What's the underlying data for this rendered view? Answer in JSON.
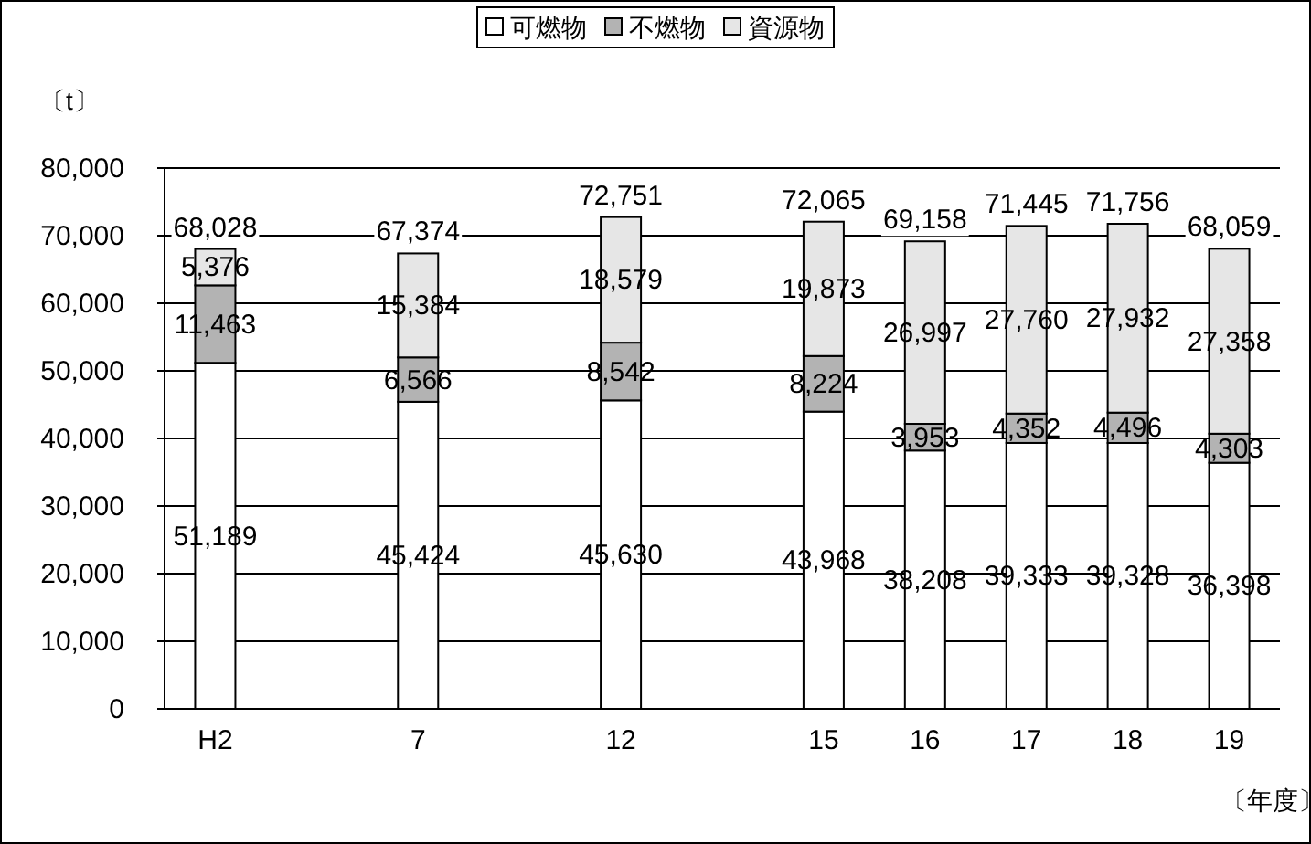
{
  "chart_data": {
    "type": "bar",
    "stacked": true,
    "categories": [
      "H2",
      null,
      "7",
      null,
      "12",
      null,
      "15",
      "16",
      "17",
      "18",
      "19"
    ],
    "series": [
      {
        "name": "可燃物",
        "color": "#ffffff",
        "values": [
          51189,
          null,
          45424,
          null,
          45630,
          null,
          43968,
          38208,
          39333,
          39328,
          36398
        ],
        "value_labels": [
          "51,189",
          null,
          "45,424",
          null,
          "45,630",
          null,
          "43,968",
          "38,208",
          "39,333",
          "39,328",
          "36,398"
        ]
      },
      {
        "name": "不燃物",
        "color": "#b3b3b3",
        "values": [
          11463,
          null,
          6566,
          null,
          8542,
          null,
          8224,
          3953,
          4352,
          4496,
          4303
        ],
        "value_labels": [
          "11,463",
          null,
          "6,566",
          null,
          "8,542",
          null,
          "8,224",
          "3,953",
          "4,352",
          "4,496",
          "4,303"
        ]
      },
      {
        "name": "資源物",
        "color": "#e6e6e6",
        "values": [
          5376,
          null,
          15384,
          null,
          18579,
          null,
          19873,
          26997,
          27760,
          27932,
          27358
        ],
        "value_labels": [
          "5,376",
          null,
          "15,384",
          null,
          "18,579",
          null,
          "19,873",
          "26,997",
          "27,760",
          "27,932",
          "27,358"
        ]
      }
    ],
    "totals": [
      "68,028",
      null,
      "67,374",
      null,
      "72,751",
      null,
      "72,065",
      "69,158",
      "71,445",
      "71,756",
      "68,059"
    ],
    "ylabel": "〔t〕",
    "xlabel": "〔年度〕",
    "ylim": [
      0,
      80000
    ],
    "yticks": [
      0,
      {
        "value": 10000,
        "label": "10,000"
      },
      {
        "value": 20000,
        "label": "20,000"
      },
      {
        "value": 30000,
        "label": "30,000"
      },
      {
        "value": 40000,
        "label": "40,000"
      },
      {
        "value": 50000,
        "label": "50,000"
      },
      {
        "value": 60000,
        "label": "60,000"
      },
      {
        "value": 70000,
        "label": "70,000"
      },
      {
        "value": 80000,
        "label": "80,000"
      }
    ],
    "grid": "y",
    "legend": "top"
  }
}
